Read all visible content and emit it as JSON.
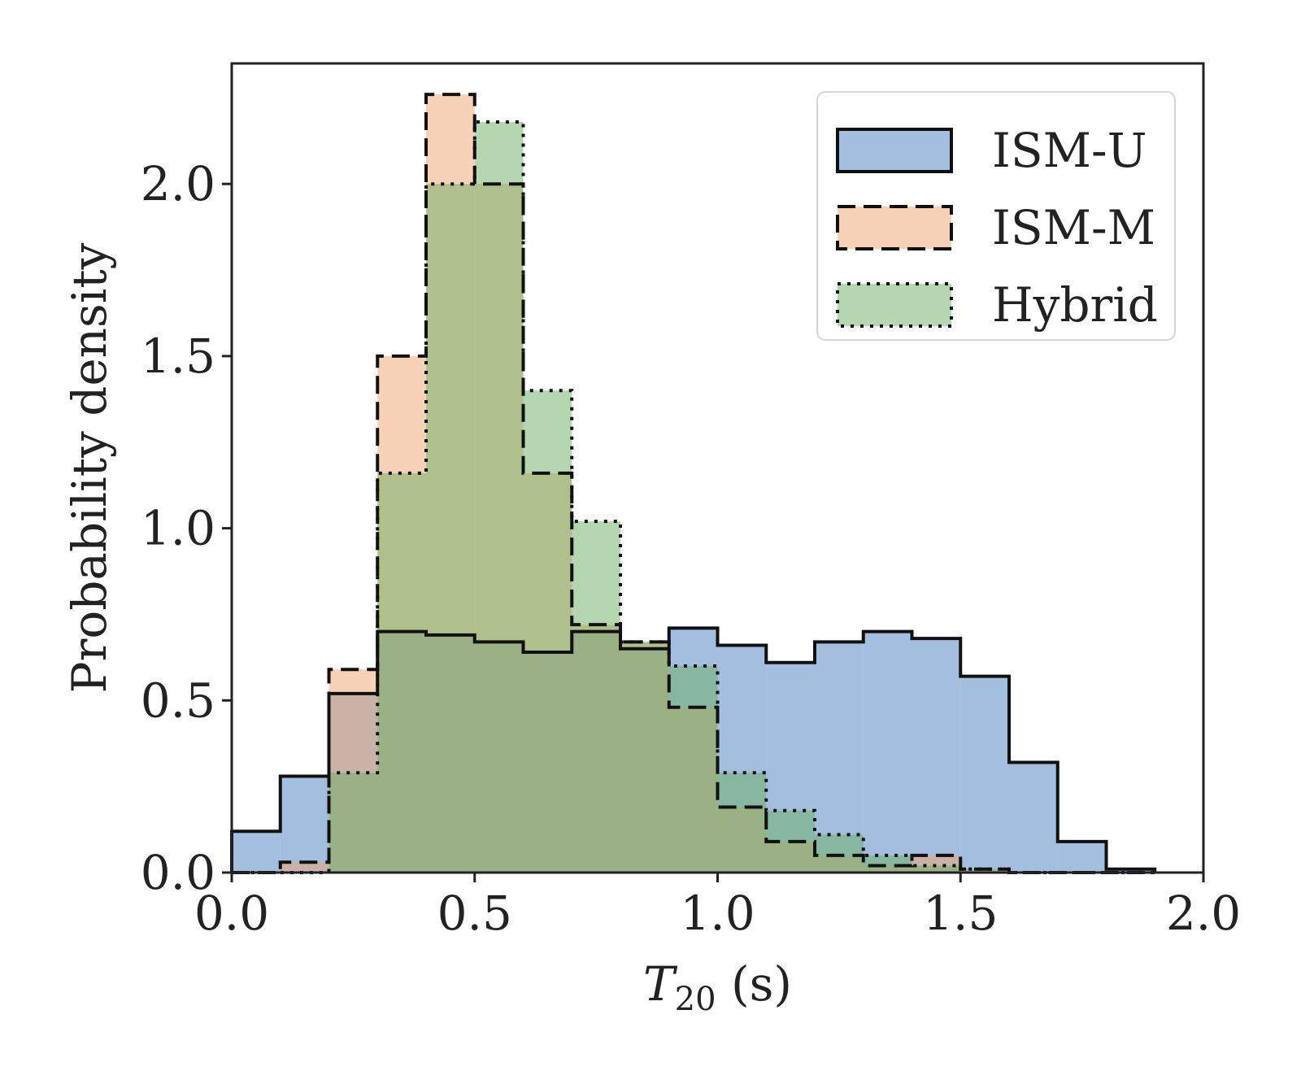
{
  "chart_data": {
    "type": "histogram",
    "title": "",
    "xlabel": "T",
    "xlabel_sub": "20",
    "xlabel_unit": " (s)",
    "ylabel": "Probability density",
    "xlim": [
      0.0,
      2.0
    ],
    "ylim": [
      0.0,
      2.35
    ],
    "bin_width": 0.1,
    "xticks": [
      "0.0",
      "0.5",
      "1.0",
      "1.5",
      "2.0"
    ],
    "yticks": [
      "0.0",
      "0.5",
      "1.0",
      "1.5",
      "2.0"
    ],
    "grid": false,
    "legend_position": "top-right",
    "series": [
      {
        "name": "ISM-U",
        "color": "#4a7ebf",
        "edge_style": "solid",
        "bin_edges": [
          0.0,
          0.1,
          0.2,
          0.3,
          0.4,
          0.5,
          0.6,
          0.7,
          0.8,
          0.9,
          1.0,
          1.1,
          1.2,
          1.3,
          1.4,
          1.5,
          1.6,
          1.7,
          1.8,
          1.9
        ],
        "values": [
          0.12,
          0.28,
          0.52,
          0.7,
          0.69,
          0.67,
          0.64,
          0.7,
          0.65,
          0.71,
          0.66,
          0.61,
          0.67,
          0.7,
          0.68,
          0.57,
          0.32,
          0.09,
          0.01
        ]
      },
      {
        "name": "ISM-M",
        "color": "#f0a570",
        "edge_style": "dashed",
        "bin_edges": [
          0.0,
          0.1,
          0.2,
          0.3,
          0.4,
          0.5,
          0.6,
          0.7,
          0.8,
          0.9,
          1.0,
          1.1,
          1.2,
          1.3,
          1.4,
          1.5,
          1.6,
          1.7,
          1.8,
          1.9
        ],
        "values": [
          0.0,
          0.03,
          0.59,
          1.5,
          2.26,
          2.0,
          1.16,
          0.72,
          0.67,
          0.48,
          0.19,
          0.09,
          0.05,
          0.02,
          0.05,
          0.01,
          0.0,
          0.0,
          0.0
        ]
      },
      {
        "name": "Hybrid",
        "color": "#6aae63",
        "edge_style": "dotted",
        "bin_edges": [
          0.0,
          0.1,
          0.2,
          0.3,
          0.4,
          0.5,
          0.6,
          0.7,
          0.8,
          0.9,
          1.0,
          1.1,
          1.2,
          1.3,
          1.4,
          1.5,
          1.6,
          1.7,
          1.8,
          1.9
        ],
        "values": [
          0.0,
          0.0,
          0.29,
          1.16,
          2.0,
          2.18,
          1.4,
          1.02,
          0.67,
          0.6,
          0.29,
          0.18,
          0.11,
          0.05,
          0.02,
          0.01,
          0.0,
          0.0,
          0.0
        ]
      }
    ]
  }
}
